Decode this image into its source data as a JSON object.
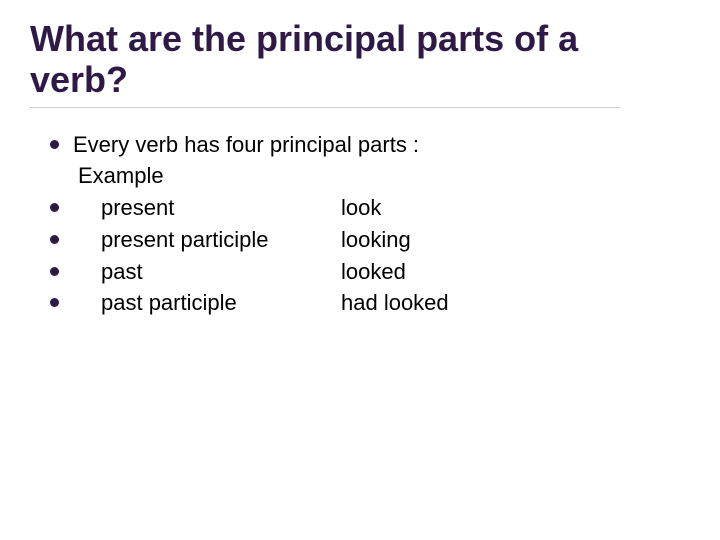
{
  "title": "What are the principal parts of a verb?",
  "intro": "Every verb has four principal parts :",
  "example_label": "Example",
  "parts": [
    {
      "label": "present",
      "example": "look"
    },
    {
      "label": "present participle",
      "example": "looking"
    },
    {
      "label": "past",
      "example": "looked"
    },
    {
      "label": "past participle",
      "example": "had looked"
    }
  ],
  "colors": {
    "title_color": "#2e1a47",
    "bullet_color": "#2e1a47",
    "text_color": "#000000",
    "background": "#ffffff",
    "divider": "#cccccc"
  },
  "typography": {
    "title_fontsize": 36,
    "body_fontsize": 22,
    "title_weight": "bold"
  },
  "layout": {
    "slide_width": 720,
    "slide_height": 540
  }
}
